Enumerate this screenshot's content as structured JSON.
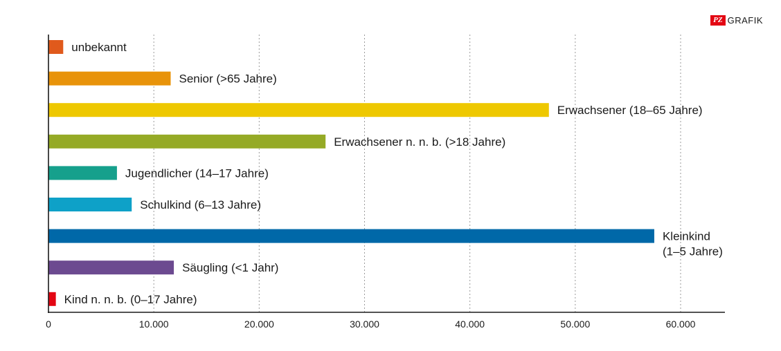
{
  "logo": {
    "mark": "PZ",
    "text": "GRAFIK"
  },
  "chart_data": {
    "type": "bar",
    "orientation": "horizontal",
    "categories": [
      "unbekannt",
      "Senior (>65 Jahre)",
      "Erwachsener (18–65 Jahre)",
      "Erwachsener n. n. b. (>18 Jahre)",
      "Jugendlicher (14–17 Jahre)",
      "Schulkind (6–13 Jahre)",
      "Kleinkind (1–5 Jahre)",
      "Säugling (<1 Jahr)",
      "Kind n. n. b. (0–17 Jahre)"
    ],
    "values": [
      1400,
      11600,
      47500,
      26300,
      6500,
      7900,
      57500,
      11900,
      700
    ],
    "colors": [
      "#e05a1c",
      "#e8930a",
      "#eec800",
      "#95aa26",
      "#16a08c",
      "#0ea1c8",
      "#0068a8",
      "#6c4a90",
      "#e30613"
    ],
    "xlim": [
      0,
      64000
    ],
    "xticks": [
      0,
      10000,
      20000,
      30000,
      40000,
      50000,
      60000
    ],
    "xtick_labels": [
      "0",
      "10.000",
      "20.000",
      "30.000",
      "40.000",
      "50.000",
      "60.000"
    ],
    "grid": "vertical dotted",
    "title": "",
    "xlabel": "",
    "ylabel": ""
  }
}
